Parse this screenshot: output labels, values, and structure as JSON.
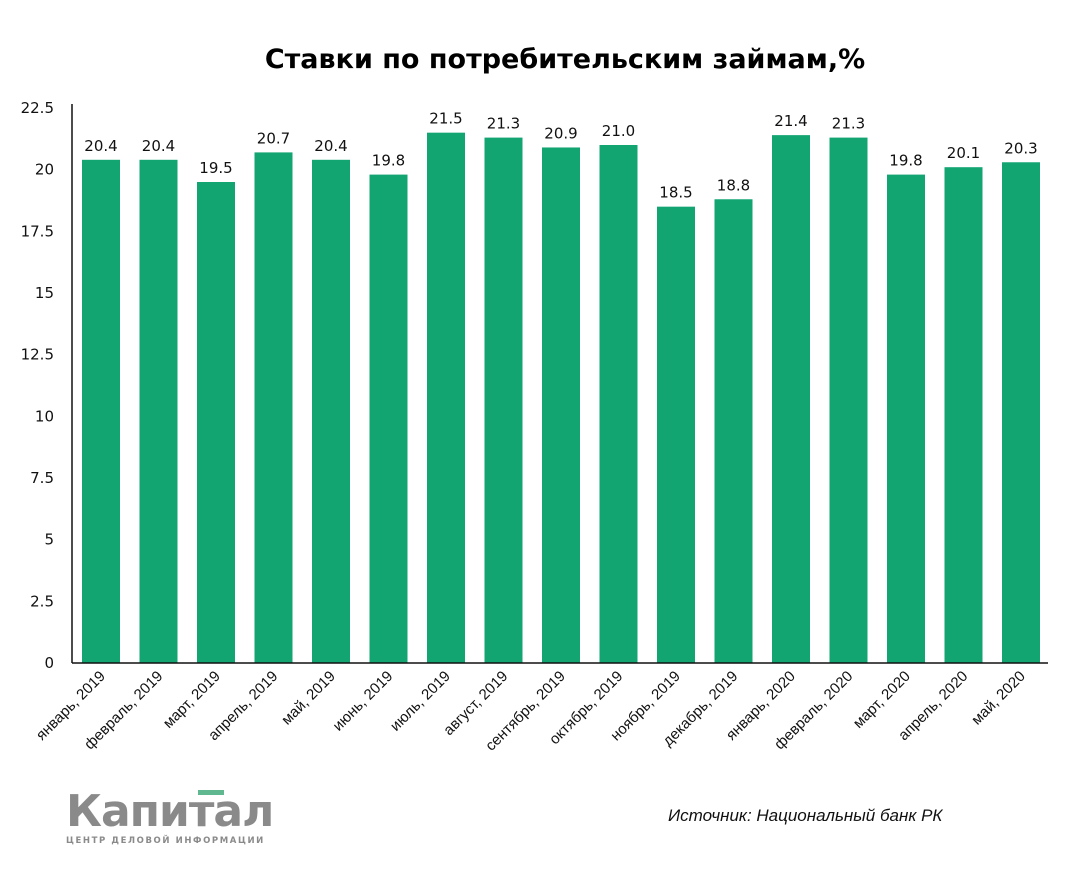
{
  "chart_data": {
    "type": "bar",
    "title": "Ставки по потребительским займам,%",
    "categories": [
      "январь, 2019",
      "февраль, 2019",
      "март, 2019",
      "апрель, 2019",
      "май, 2019",
      "июнь, 2019",
      "июль, 2019",
      "август, 2019",
      "сентябрь, 2019",
      "октябрь, 2019",
      "ноябрь, 2019",
      "декабрь, 2019",
      "январь, 2020",
      "февраль, 2020",
      "март, 2020",
      "апрель, 2020",
      "май, 2020"
    ],
    "values": [
      20.4,
      20.4,
      19.5,
      20.7,
      20.4,
      19.8,
      21.5,
      21.3,
      20.9,
      21.0,
      18.5,
      18.8,
      21.4,
      21.3,
      19.8,
      20.1,
      20.3
    ],
    "data_labels": [
      "20.4",
      "20.4",
      "19.5",
      "20.7",
      "20.4",
      "19.8",
      "21.5",
      "21.3",
      "20.9",
      "21.0",
      "18.5",
      "18.8",
      "21.4",
      "21.3",
      "19.8",
      "20.1",
      "20.3"
    ],
    "yticks": [
      "0",
      "2.5",
      "5",
      "7.5",
      "10",
      "12.5",
      "15",
      "17.5",
      "20",
      "22.5"
    ],
    "ylim": [
      0,
      22.5
    ],
    "xlabel": "",
    "ylabel": "",
    "grid": false,
    "bar_color": "#12a572"
  },
  "source": "Источник: Национальный банк РК",
  "logo": {
    "name": "Капитал",
    "tagline": "ЦЕНТР ДЕЛОВОЙ ИНФОРМАЦИИ"
  }
}
